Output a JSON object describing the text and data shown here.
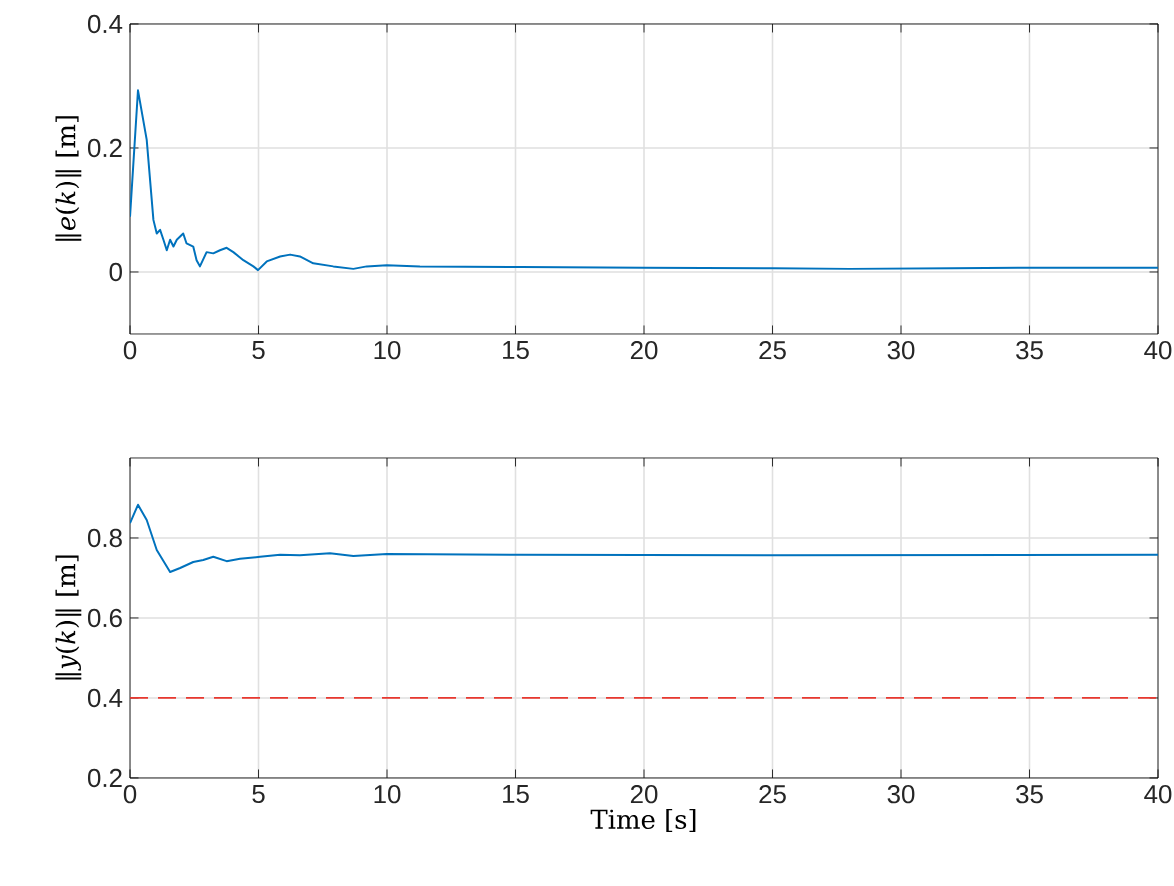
{
  "chart_data": [
    {
      "type": "line",
      "ylabel": "‖*e*(*k*)‖ [m]",
      "xlim": [
        0,
        40
      ],
      "ylim": [
        -0.1,
        0.4
      ],
      "xticks": [
        0,
        5,
        10,
        15,
        20,
        25,
        30,
        35,
        40
      ],
      "yticks": [
        0,
        0.2,
        0.4
      ],
      "grid": true,
      "line_style": "solid",
      "series": [
        {
          "color": "#0072bd",
          "x": [
            0,
            0.31,
            0.65,
            0.91,
            1.04,
            1.17,
            1.3,
            1.43,
            1.56,
            1.69,
            1.82,
            2.07,
            2.2,
            2.46,
            2.59,
            2.72,
            2.98,
            3.24,
            3.5,
            3.76,
            4.02,
            4.41,
            4.8,
            4.98,
            5.32,
            5.84,
            6.23,
            6.61,
            7.13,
            7.91,
            8.69,
            9.21,
            9.99,
            11.28,
            15.2,
            20,
            25,
            28,
            32,
            36,
            40
          ],
          "values": [
            0.089,
            0.293,
            0.213,
            0.084,
            0.062,
            0.068,
            0.052,
            0.035,
            0.052,
            0.041,
            0.052,
            0.062,
            0.046,
            0.041,
            0.019,
            0.009,
            0.032,
            0.03,
            0.035,
            0.039,
            0.032,
            0.019,
            0.009,
            0.003,
            0.017,
            0.025,
            0.028,
            0.025,
            0.014,
            0.009,
            0.005,
            0.009,
            0.011,
            0.009,
            0.008,
            0.007,
            0.006,
            0.005,
            0.006,
            0.007,
            0.007
          ]
        }
      ]
    },
    {
      "type": "line",
      "xlabel": "Time [s]",
      "ylabel": "‖*y*(*k*)‖ [m]",
      "xlim": [
        0,
        40
      ],
      "ylim": [
        0.2,
        1
      ],
      "xticks": [
        0,
        5,
        10,
        15,
        20,
        25,
        30,
        35,
        40
      ],
      "yticks": [
        0.2,
        0.4,
        0.6,
        0.8
      ],
      "grid": true,
      "line_style": "solid",
      "series": [
        {
          "color": "#0072bd",
          "x": [
            0,
            0.31,
            0.65,
            1.04,
            1.56,
            1.95,
            2.46,
            2.85,
            3.24,
            3.76,
            4.28,
            5.06,
            5.84,
            6.61,
            7.78,
            8.69,
            9.99,
            15.2,
            25,
            40
          ],
          "values": [
            0.837,
            0.883,
            0.845,
            0.77,
            0.715,
            0.725,
            0.74,
            0.745,
            0.753,
            0.742,
            0.748,
            0.753,
            0.758,
            0.757,
            0.762,
            0.755,
            0.76,
            0.758,
            0.757,
            0.758
          ]
        }
      ],
      "ref_lines": [
        {
          "axis": "y",
          "value": 0.4,
          "color": "#e8382f",
          "line_style": "dashed"
        }
      ]
    }
  ]
}
